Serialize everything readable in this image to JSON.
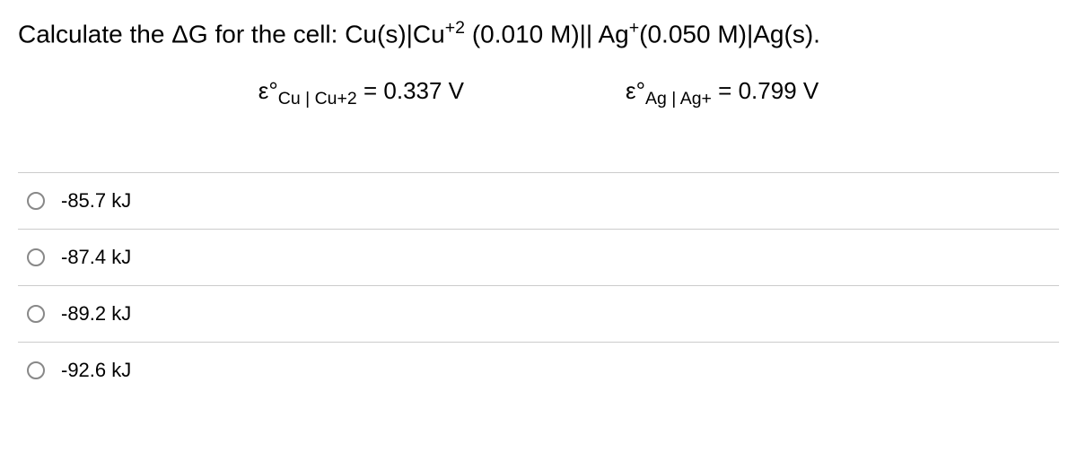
{
  "question": {
    "prefix": "Calculate the ΔG for the cell: Cu(s)|Cu",
    "sup1": "+2",
    "mid1": " (0.010 M)|| Ag",
    "sup2": "+",
    "suffix": "(0.050 M)|Ag(s)."
  },
  "given": {
    "cu": {
      "symbol": "ε°",
      "sub": "Cu | Cu+2",
      "value": " = 0.337 V"
    },
    "ag": {
      "symbol": "ε°",
      "sub": "Ag | Ag+",
      "value": " = 0.799 V"
    }
  },
  "options": [
    {
      "label": "-85.7 kJ"
    },
    {
      "label": "-87.4 kJ"
    },
    {
      "label": "-89.2 kJ"
    },
    {
      "label": "-92.6 kJ"
    }
  ],
  "colors": {
    "text": "#000000",
    "background": "#ffffff",
    "border": "#cccccc",
    "radio_border": "#888888"
  },
  "typography": {
    "question_fontsize": 28,
    "given_fontsize": 26,
    "option_fontsize": 22
  }
}
